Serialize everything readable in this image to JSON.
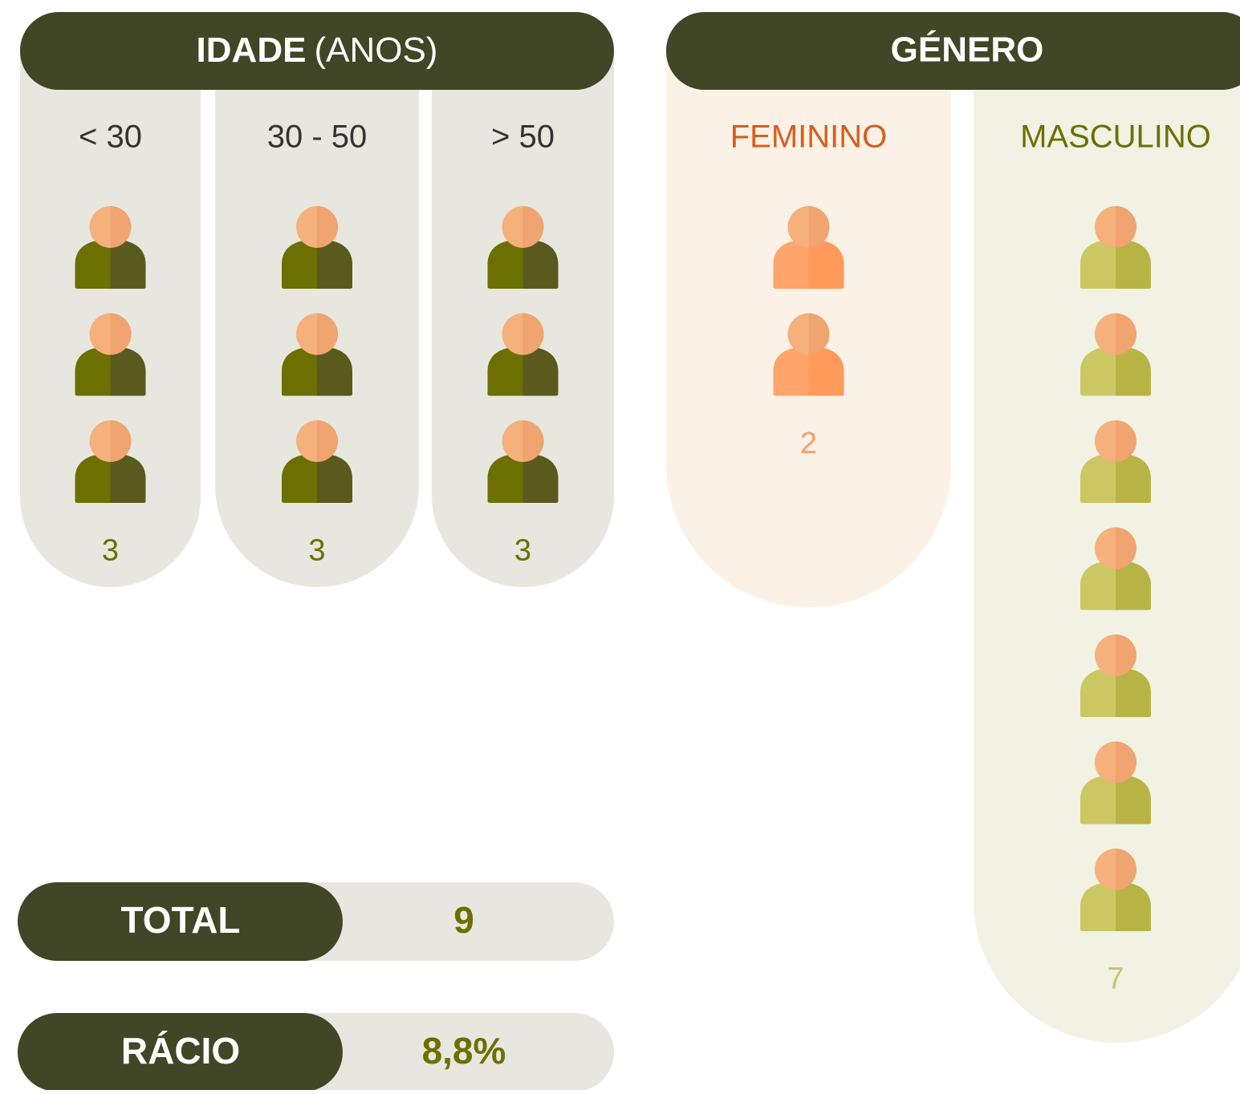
{
  "age": {
    "title_bold": "IDADE",
    "title_rest": "(ANOS)",
    "groups": [
      {
        "label": "< 30",
        "count": 3
      },
      {
        "label": "30 - 50",
        "count": 3
      },
      {
        "label": "> 50",
        "count": 3
      }
    ]
  },
  "gender": {
    "title": "GÉNERO",
    "groups": [
      {
        "label": "FEMININO",
        "count": 2
      },
      {
        "label": "MASCULINO",
        "count": 7
      }
    ]
  },
  "total": {
    "label": "TOTAL",
    "value": 9
  },
  "ratio": {
    "label": "RÁCIO",
    "value": "8,8%"
  }
}
